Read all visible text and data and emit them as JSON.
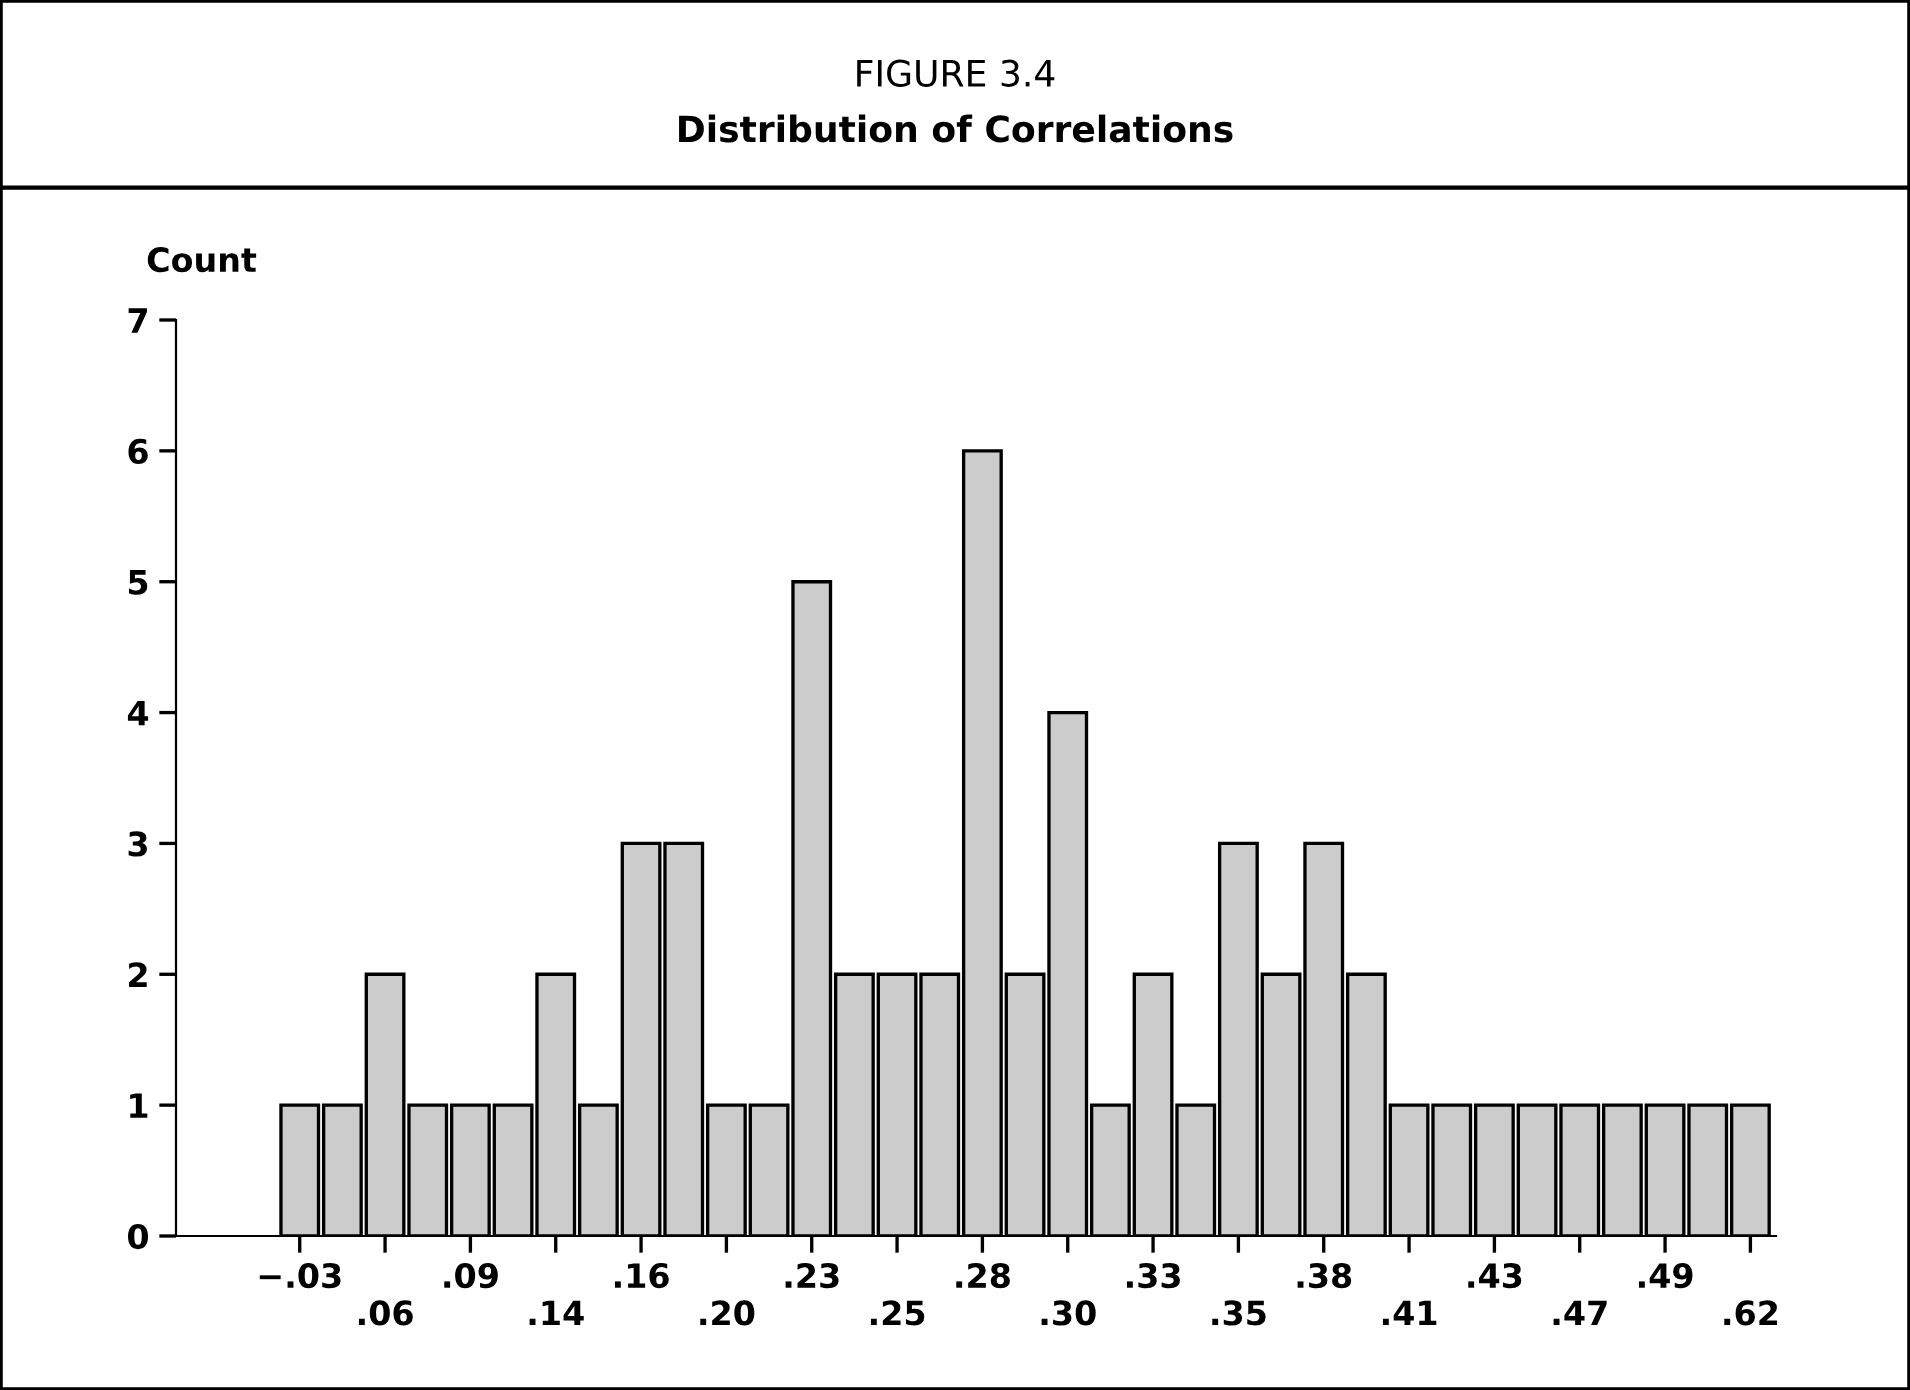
{
  "chart_data": {
    "type": "bar",
    "title": "FIGURE 3.4",
    "subtitle": "Distribution of Correlations",
    "ylabel": "Count",
    "categories": [
      "−.03",
      null,
      ".06",
      null,
      ".09",
      null,
      ".14",
      null,
      ".16",
      null,
      ".20",
      null,
      ".23",
      null,
      ".25",
      null,
      ".28",
      null,
      ".30",
      null,
      ".33",
      null,
      ".35",
      null,
      ".38",
      null,
      ".41",
      null,
      ".43",
      null,
      ".47",
      null,
      ".49",
      null,
      ".62"
    ],
    "values": [
      1,
      1,
      2,
      1,
      1,
      1,
      2,
      1,
      3,
      3,
      1,
      1,
      5,
      2,
      2,
      2,
      6,
      2,
      4,
      1,
      2,
      1,
      3,
      2,
      3,
      2,
      1,
      1,
      1,
      1,
      1,
      1,
      1,
      1,
      1
    ],
    "color": "#cccccc",
    "ylim": [
      0,
      7
    ],
    "yticks": [
      0,
      1,
      2,
      3,
      4,
      5,
      6,
      7
    ],
    "grid": false,
    "legend": false
  }
}
